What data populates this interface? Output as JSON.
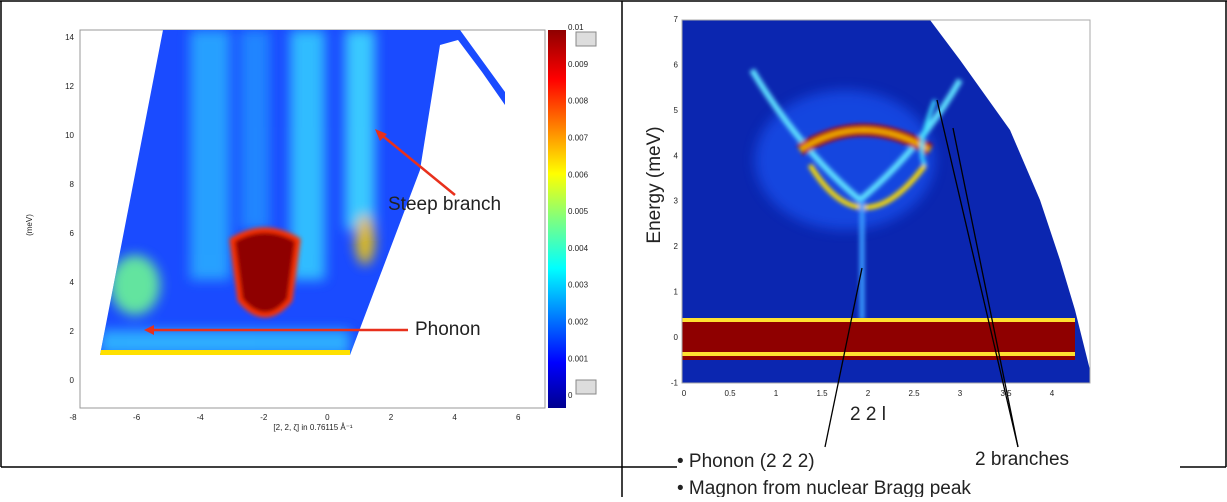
{
  "left_panel": {
    "y_label": "(meV)",
    "x_label": "[2, 2, ζ] in 0.76115 Å⁻¹",
    "x_ticks": [
      "-8",
      "-6",
      "-4",
      "-2",
      "0",
      "2",
      "4",
      "6"
    ],
    "y_ticks": [
      "14",
      "12",
      "10",
      "8",
      "6",
      "4",
      "2",
      "0"
    ],
    "colorbar_ticks": [
      "0.01",
      "0.009",
      "0.008",
      "0.007",
      "0.006",
      "0.005",
      "0.004",
      "0.003",
      "0.002",
      "0.001",
      "0"
    ],
    "annotations": [
      "Steep branch",
      "Phonon"
    ]
  },
  "right_panel": {
    "y_label": "Energy (meV)",
    "x_label": "2 2 l",
    "x_ticks": [
      "0",
      "0.5",
      "1",
      "1.5",
      "2",
      "2.5",
      "3",
      "3.5",
      "4"
    ],
    "y_ticks": [
      "7",
      "6",
      "5",
      "4",
      "3",
      "2",
      "1",
      "0",
      "-1"
    ],
    "annotation": "2 branches",
    "bullets": [
      "• Phonon (2 2 2)",
      "• Magnon from nuclear Bragg peak"
    ]
  }
}
